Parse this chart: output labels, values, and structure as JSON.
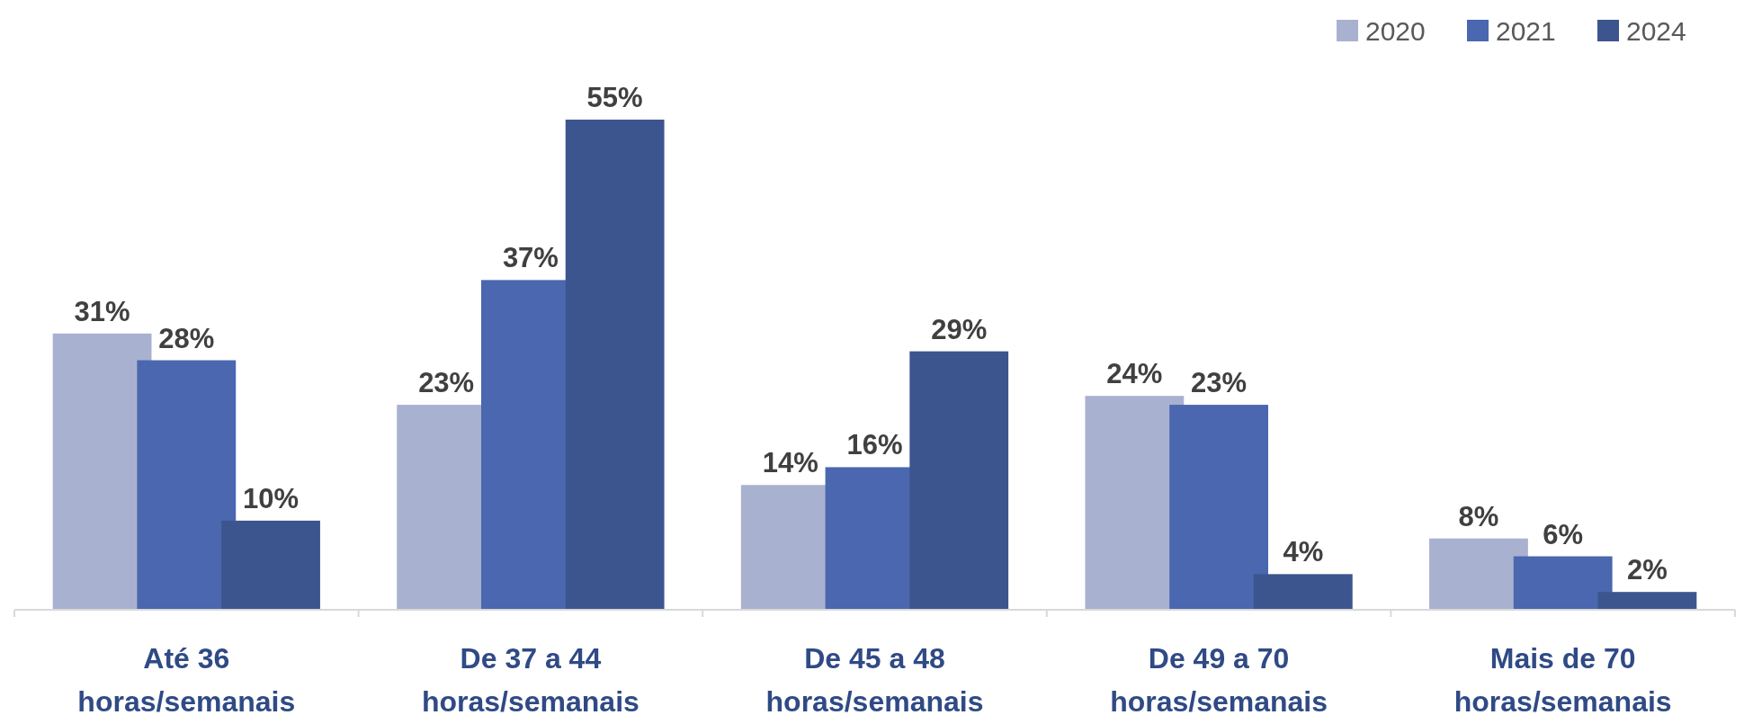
{
  "chart_data": {
    "type": "bar",
    "categories": [
      "Até 36\nhoras/semanais",
      "De 37 a 44\nhoras/semanais",
      "De 45 a 48\nhoras/semanais",
      "De 49 a 70\nhoras/semanais",
      "Mais de 70\nhoras/semanais"
    ],
    "series": [
      {
        "name": "2020",
        "color": "#a9b1d0",
        "values": [
          31,
          23,
          14,
          24,
          8
        ],
        "value_labels": [
          "31%",
          "23%",
          "14%",
          "24%",
          "8%"
        ]
      },
      {
        "name": "2021",
        "color": "#4a67af",
        "values": [
          28,
          37,
          16,
          23,
          6
        ],
        "value_labels": [
          "28%",
          "37%",
          "16%",
          "23%",
          "6%"
        ]
      },
      {
        "name": "2024",
        "color": "#3d558e",
        "values": [
          10,
          55,
          29,
          4,
          2
        ],
        "value_labels": [
          "10%",
          "55%",
          "29%",
          "4%",
          "2%"
        ]
      }
    ],
    "legend": "top right"
  }
}
